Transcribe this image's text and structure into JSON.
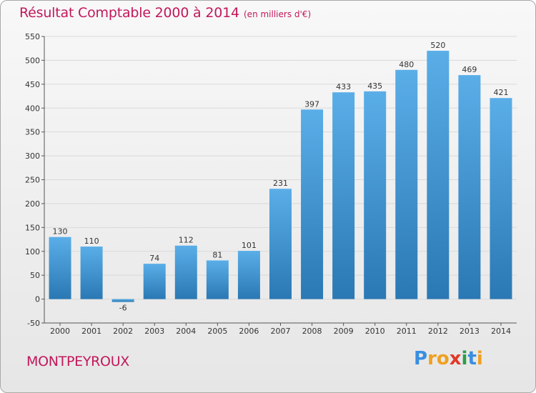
{
  "header": {
    "title": "Résultat Comptable 2000 à 2014",
    "unit": "(en milliers d'€)"
  },
  "footer": {
    "commune": "MONTPEYROUX",
    "brand": "Proxiti",
    "brand_letters": [
      "P",
      "r",
      "o",
      "x",
      "i",
      "t",
      "i"
    ]
  },
  "colors": {
    "accent": "#c2185b",
    "bar_top": "#5aaee8",
    "bar_bottom": "#2a78b4",
    "grid": "#d9d9d9",
    "brand_letters": [
      "#3a8ee0",
      "#f0a020",
      "#f0a020",
      "#e03a2a",
      "#2c9e4a",
      "#3a8ee0",
      "#f0a020"
    ]
  },
  "chart_data": {
    "type": "bar",
    "title": "Résultat Comptable 2000 à 2014",
    "subtitle": "(en milliers d'€)",
    "categories": [
      "2000",
      "2001",
      "2002",
      "2003",
      "2004",
      "2005",
      "2006",
      "2007",
      "2008",
      "2009",
      "2010",
      "2011",
      "2012",
      "2013",
      "2014"
    ],
    "values": [
      130,
      110,
      -6,
      74,
      112,
      81,
      101,
      231,
      397,
      433,
      435,
      480,
      520,
      469,
      421
    ],
    "ylim": [
      -50,
      550
    ],
    "yticks": [
      -50,
      0,
      50,
      100,
      150,
      200,
      250,
      300,
      350,
      400,
      450,
      500,
      550
    ],
    "grid": true,
    "xlabel": "",
    "ylabel": ""
  }
}
